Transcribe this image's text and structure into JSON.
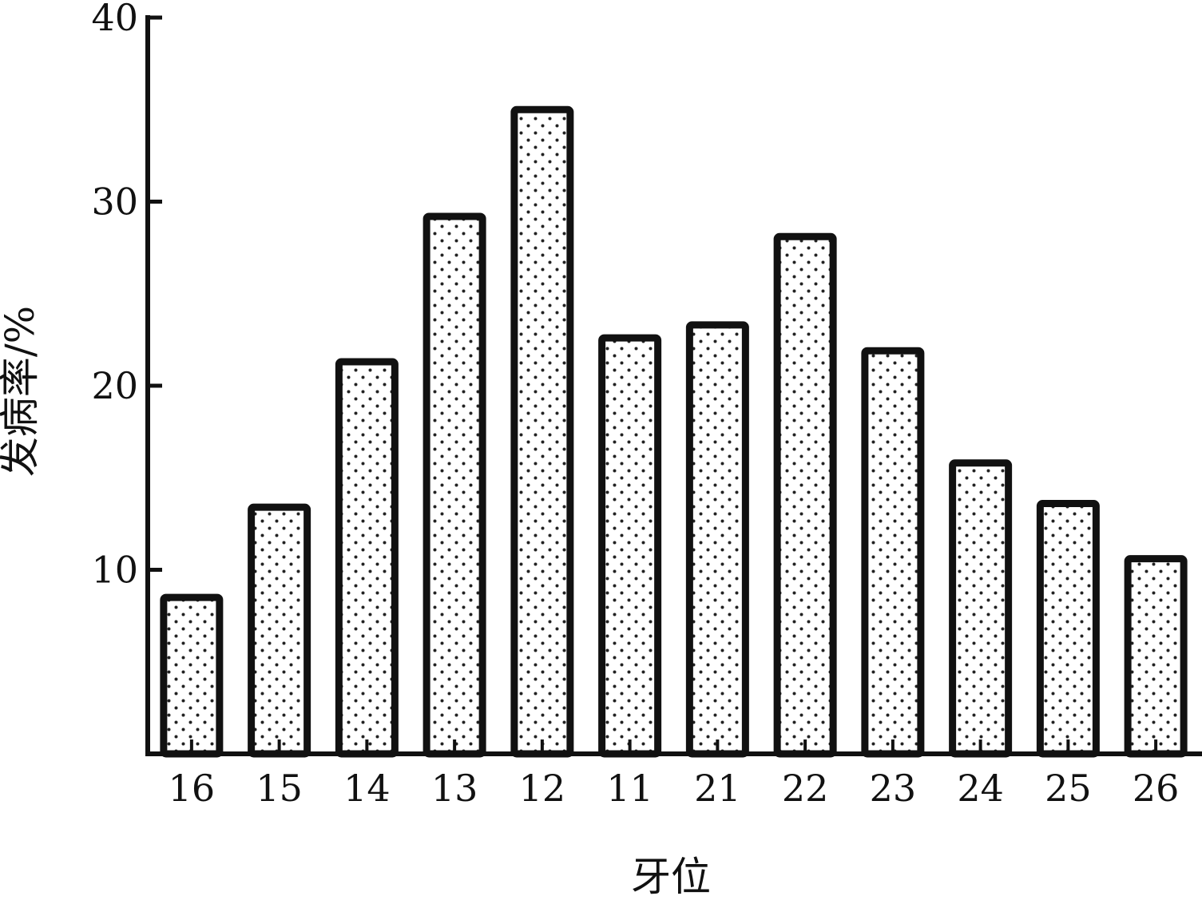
{
  "chart_data": {
    "type": "bar",
    "title": "",
    "xlabel": "牙位",
    "ylabel": "发病率/%",
    "categories": [
      "16",
      "15",
      "14",
      "13",
      "12",
      "11",
      "21",
      "22",
      "23",
      "24",
      "25",
      "26"
    ],
    "values": [
      8.5,
      13.4,
      21.3,
      29.2,
      35.0,
      22.6,
      23.3,
      28.1,
      21.9,
      15.8,
      13.6,
      10.6
    ],
    "ylim": [
      0,
      40
    ],
    "yticks": [
      "10",
      "20",
      "30",
      "40"
    ],
    "grid": false,
    "legend": "none",
    "bar_fill": "dotted",
    "colors": {
      "bar_stroke": "#111111",
      "bar_fill_bg": "#ffffff",
      "dot": "#222222",
      "axis": "#111111"
    }
  }
}
